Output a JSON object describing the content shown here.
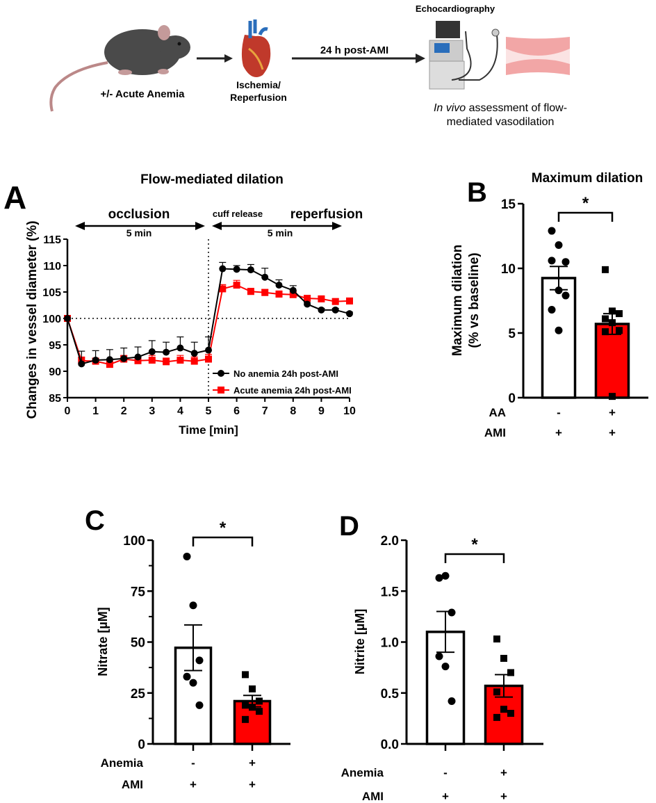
{
  "schematic": {
    "step1": "+/- Acute Anemia",
    "step2_line1": "Ischemia/",
    "step2_line2": "Reperfusion",
    "arrow_label": "24 h post-AMI",
    "device_label": "Echocardiography",
    "outcome_line1_italic": "In vivo",
    "outcome_line1_rest": " assessment of flow-",
    "outcome_line2": "mediated vasodilation"
  },
  "chart_data": [
    {
      "panel": "A",
      "type": "line",
      "title": "Flow-mediated dilation",
      "xlabel": "Time [min]",
      "ylabel": "Changes in  vessel  diameter (%)",
      "xlim": [
        0,
        10
      ],
      "ylim": [
        85,
        115
      ],
      "xticks": [
        0,
        1,
        2,
        3,
        4,
        5,
        6,
        7,
        8,
        9,
        10
      ],
      "yticks": [
        85,
        90,
        95,
        100,
        105,
        110,
        115
      ],
      "annotations": {
        "occlusion": "occlusion",
        "cuff_release": "cuff release",
        "reperfusion": "reperfusion",
        "duration_left": "5 min",
        "duration_right": "5 min"
      },
      "reference_line_y": 100,
      "reference_line_x": 5,
      "legend_position": "bottom-right",
      "x": [
        0,
        0.5,
        1,
        1.5,
        2,
        2.5,
        3,
        3.5,
        4,
        4.5,
        5,
        5.5,
        6,
        6.5,
        7,
        7.5,
        8,
        8.5,
        9,
        9.5,
        10
      ],
      "series": [
        {
          "name": "No anemia 24h post-AMI",
          "color": "#000000",
          "marker": "circle",
          "values": [
            100,
            91.4,
            92.1,
            92.2,
            92.4,
            92.7,
            93.7,
            93.6,
            94.4,
            93.4,
            94.0,
            109.4,
            109.3,
            109.2,
            107.8,
            106.3,
            105.3,
            102.7,
            101.6,
            101.6,
            100.9
          ],
          "sem": [
            0,
            2.4,
            1.8,
            1.9,
            2.0,
            1.9,
            2.1,
            1.9,
            2.1,
            2.1,
            2.5,
            1.2,
            0.7,
            1.0,
            1.7,
            1.0,
            0.9,
            0.3,
            0.3,
            0.3,
            0.3
          ]
        },
        {
          "name": "Acute anemia 24h post-AMI",
          "color": "#ff0000",
          "marker": "square",
          "values": [
            100,
            92.0,
            91.9,
            91.3,
            92.3,
            92.0,
            92.1,
            91.8,
            92.1,
            91.9,
            92.3,
            105.6,
            106.3,
            105.1,
            104.9,
            104.6,
            104.5,
            103.8,
            103.7,
            103.2,
            103.3
          ],
          "sem": [
            0,
            0.7,
            0.6,
            0.6,
            0.7,
            0.6,
            0.9,
            0.7,
            0.9,
            0.8,
            0.9,
            0.8,
            0.9,
            0.6,
            0.6,
            0.6,
            0.8,
            0.5,
            0.5,
            0.5,
            0.5
          ]
        }
      ]
    },
    {
      "panel": "B",
      "type": "bar",
      "title": "Maximum dilation",
      "ylabel_line1": "Maximum dilation",
      "ylabel_line2": "(% vs baseline)",
      "ylim": [
        0,
        15
      ],
      "yticks": [
        0,
        5,
        10,
        15
      ],
      "row_labels": [
        "AA",
        "AMI"
      ],
      "groups": [
        {
          "row_values": [
            "-",
            "+"
          ],
          "mean": 9.25,
          "sem": 0.9,
          "color": "#ffffff",
          "marker": "circle",
          "points": [
            12.9,
            11.8,
            10.5,
            10.6,
            8.3,
            7.9,
            6.8,
            5.2
          ]
        },
        {
          "row_values": [
            "+",
            "+"
          ],
          "mean": 5.7,
          "sem": 0.8,
          "color": "#ff0000",
          "marker": "square",
          "points": [
            9.9,
            6.7,
            6.5,
            6.1,
            5.8,
            5.2,
            5.1,
            0.1
          ]
        }
      ],
      "significance": "*"
    },
    {
      "panel": "C",
      "type": "bar",
      "ylabel": "Nitrate [µM]",
      "ylim": [
        0,
        100
      ],
      "yticks": [
        0,
        25,
        50,
        75,
        100
      ],
      "minor_step": 12.5,
      "row_labels": [
        "Anemia",
        "AMI"
      ],
      "groups": [
        {
          "row_values": [
            "-",
            "+"
          ],
          "mean": 47.2,
          "sem": 11.2,
          "color": "#ffffff",
          "marker": "circle",
          "points": [
            92,
            68,
            41,
            33,
            30,
            19
          ]
        },
        {
          "row_values": [
            "+",
            "+"
          ],
          "mean": 21.0,
          "sem": 2.8,
          "color": "#ff0000",
          "marker": "square",
          "points": [
            34,
            27,
            21,
            19,
            18,
            16,
            12
          ]
        }
      ],
      "significance": "*"
    },
    {
      "panel": "D",
      "type": "bar",
      "ylabel": "Nitrite [µM]",
      "ylim": [
        0,
        2.0
      ],
      "yticks": [
        0.0,
        0.5,
        1.0,
        1.5,
        2.0
      ],
      "tick_decimals": 1,
      "row_labels": [
        "Anemia",
        "AMI"
      ],
      "groups": [
        {
          "row_values": [
            "-",
            "+"
          ],
          "mean": 1.1,
          "sem": 0.2,
          "color": "#ffffff",
          "marker": "circle",
          "points": [
            1.63,
            1.65,
            1.29,
            0.86,
            0.76,
            0.42
          ]
        },
        {
          "row_values": [
            "+",
            "+"
          ],
          "mean": 0.57,
          "sem": 0.11,
          "color": "#ff0000",
          "marker": "square",
          "points": [
            1.03,
            0.84,
            0.7,
            0.51,
            0.34,
            0.3,
            0.26
          ]
        }
      ],
      "significance": "*"
    }
  ]
}
